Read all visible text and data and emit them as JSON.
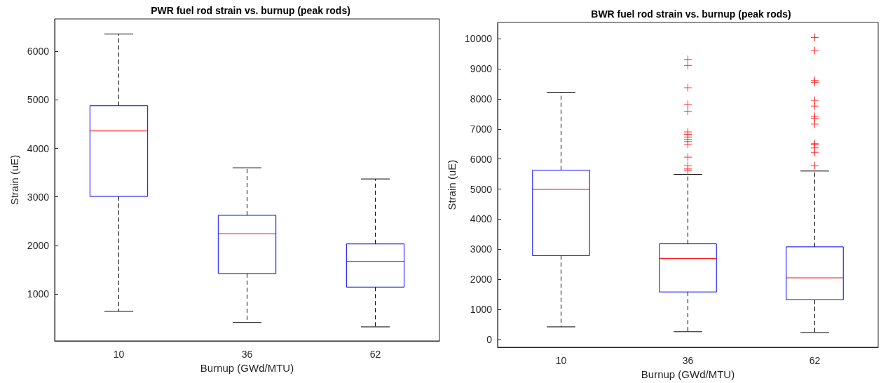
{
  "chart_data": [
    {
      "type": "box",
      "title": "PWR fuel rod strain vs. burnup (peak rods)",
      "xlabel": "Burnup (GWd/MTU)",
      "ylabel": "Strain (uE)",
      "categories": [
        "10",
        "36",
        "62"
      ],
      "ylim": [
        30,
        6670
      ],
      "yticks": [
        1000,
        2000,
        3000,
        4000,
        5000,
        6000
      ],
      "grid": false,
      "marker": "cross",
      "series": [
        {
          "color": "#0000ff",
          "boxes": [
            {
              "low": 640,
              "q1": 3010,
              "median": 4360,
              "q3": 4880,
              "high": 6360
            },
            {
              "low": 410,
              "q1": 1420,
              "median": 2240,
              "q3": 2620,
              "high": 3600
            },
            {
              "low": 320,
              "q1": 1140,
              "median": 1670,
              "q3": 2030,
              "high": 3370
            }
          ]
        }
      ]
    },
    {
      "type": "box",
      "title": "BWR fuel rod strain vs. burnup (peak rods)",
      "xlabel": "Burnup (GWd/MTU)",
      "ylabel": "Strain (uE)",
      "categories": [
        "10",
        "36",
        "62"
      ],
      "ylim": [
        -260,
        10540
      ],
      "yticks": [
        0,
        1000,
        2000,
        3000,
        4000,
        5000,
        6000,
        7000,
        8000,
        9000,
        10000
      ],
      "grid": false,
      "marker": "cross",
      "series": [
        {
          "color": "#0000ff",
          "boxes": [
            {
              "low": 420,
              "q1": 2790,
              "median": 4990,
              "q3": 5630,
              "high": 8220
            },
            {
              "low": 260,
              "q1": 1580,
              "median": 2690,
              "q3": 3180,
              "high": 5490,
              "outliers": [
                9310,
                9110,
                8370,
                7820,
                7590,
                6900,
                6820,
                6730,
                6650,
                6580,
                6490,
                6060,
                5780,
                5670,
                5610
              ]
            },
            {
              "low": 220,
              "q1": 1320,
              "median": 2050,
              "q3": 3080,
              "high": 5600,
              "outliers": [
                10040,
                9610,
                8610,
                8550,
                7950,
                7760,
                7420,
                7350,
                7160,
                6510,
                6470,
                6370,
                6220,
                5780
              ]
            }
          ]
        }
      ]
    }
  ]
}
